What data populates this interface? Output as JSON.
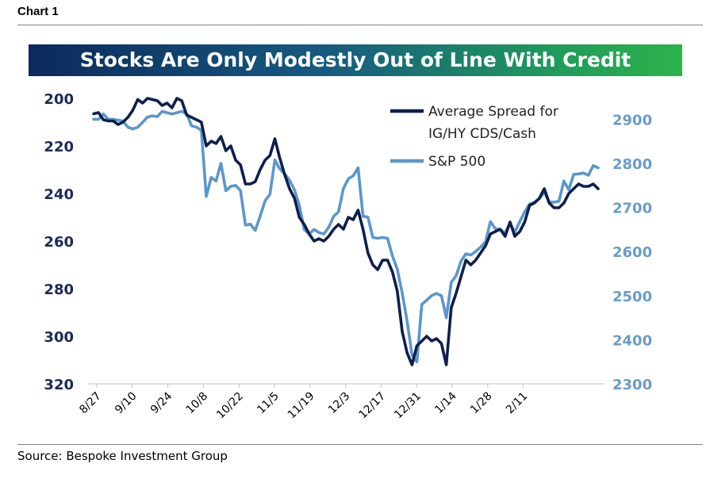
{
  "header": {
    "label": "Chart 1"
  },
  "footer": {
    "source": "Source: Bespoke Investment Group"
  },
  "chart_data": {
    "type": "line",
    "title": "Stocks Are Only Modestly Out of Line With Credit",
    "x_tick_labels": [
      "8/27",
      "9/10",
      "9/24",
      "10/8",
      "10/22",
      "11/5",
      "11/19",
      "12/3",
      "12/17",
      "12/31",
      "1/14",
      "1/28",
      "2/11"
    ],
    "y_left": {
      "ticks": [
        200,
        220,
        240,
        260,
        280,
        300,
        320
      ],
      "range": [
        200,
        320
      ],
      "inverted": true
    },
    "y_right": {
      "ticks": [
        2900,
        2800,
        2700,
        2600,
        2500,
        2400,
        2300
      ],
      "range": [
        2300,
        2970
      ]
    },
    "legend": {
      "placement": "top-right",
      "entries": [
        "Average Spread for IG/HY CDS/Cash",
        "S&P 500"
      ]
    },
    "grid": false,
    "series": [
      {
        "name": "Average Spread for IG/HY CDS/Cash",
        "axis": "left",
        "color": "#0e1f4d",
        "points": [
          [
            0,
            206.5
          ],
          [
            2,
            206
          ],
          [
            4,
            209
          ],
          [
            6,
            209.5
          ],
          [
            8,
            209.5
          ],
          [
            10,
            211
          ],
          [
            12,
            210
          ],
          [
            14,
            208
          ],
          [
            16,
            205
          ],
          [
            18,
            200.5
          ],
          [
            20,
            202
          ],
          [
            22,
            200
          ],
          [
            24,
            200.5
          ],
          [
            26,
            201
          ],
          [
            28,
            203
          ],
          [
            30,
            202
          ],
          [
            32,
            204
          ],
          [
            34,
            200
          ],
          [
            36,
            201
          ],
          [
            38,
            207
          ],
          [
            40,
            208
          ],
          [
            42,
            209
          ],
          [
            44,
            210
          ],
          [
            46,
            220
          ],
          [
            48,
            218
          ],
          [
            50,
            219
          ],
          [
            52,
            216
          ],
          [
            54,
            222
          ],
          [
            56,
            220
          ],
          [
            58,
            226
          ],
          [
            60,
            228
          ],
          [
            62,
            236
          ],
          [
            64,
            236
          ],
          [
            66,
            235
          ],
          [
            68,
            230
          ],
          [
            70,
            226
          ],
          [
            72,
            224
          ],
          [
            74,
            217
          ],
          [
            76,
            225
          ],
          [
            78,
            232
          ],
          [
            80,
            238
          ],
          [
            82,
            242
          ],
          [
            84,
            250
          ],
          [
            86,
            253
          ],
          [
            88,
            257
          ],
          [
            90,
            260
          ],
          [
            92,
            259
          ],
          [
            94,
            260
          ],
          [
            96,
            258
          ],
          [
            98,
            255
          ],
          [
            100,
            253
          ],
          [
            102,
            255
          ],
          [
            104,
            250
          ],
          [
            106,
            251
          ],
          [
            108,
            247
          ],
          [
            110,
            255
          ],
          [
            112,
            265
          ],
          [
            114,
            270
          ],
          [
            116,
            272
          ],
          [
            118,
            268
          ],
          [
            120,
            268
          ],
          [
            122,
            273
          ],
          [
            124,
            281
          ],
          [
            126,
            298
          ],
          [
            128,
            307
          ],
          [
            130,
            312
          ],
          [
            132,
            304
          ],
          [
            134,
            302
          ],
          [
            136,
            300
          ],
          [
            138,
            302
          ],
          [
            140,
            301
          ],
          [
            142,
            303
          ],
          [
            144,
            312
          ],
          [
            146,
            288
          ],
          [
            148,
            282
          ],
          [
            150,
            275
          ],
          [
            152,
            268
          ],
          [
            154,
            270
          ],
          [
            156,
            268
          ],
          [
            158,
            265
          ],
          [
            160,
            262
          ],
          [
            162,
            257
          ],
          [
            164,
            256
          ],
          [
            166,
            255
          ],
          [
            168,
            258
          ],
          [
            170,
            252
          ],
          [
            172,
            258
          ],
          [
            174,
            256
          ],
          [
            176,
            252
          ],
          [
            178,
            245
          ],
          [
            180,
            244
          ],
          [
            182,
            242
          ],
          [
            184,
            238
          ],
          [
            186,
            244
          ],
          [
            188,
            246
          ],
          [
            190,
            246
          ],
          [
            192,
            244
          ],
          [
            194,
            240
          ],
          [
            196,
            238
          ],
          [
            198,
            236
          ],
          [
            200,
            237
          ],
          [
            202,
            237
          ],
          [
            204,
            236
          ],
          [
            206,
            238
          ]
        ]
      },
      {
        "name": "S&P 500",
        "axis": "right",
        "color": "#5b97cc",
        "points": [
          [
            0,
            2900
          ],
          [
            2,
            2900
          ],
          [
            4,
            2912
          ],
          [
            6,
            2900
          ],
          [
            8,
            2900
          ],
          [
            10,
            2898
          ],
          [
            12,
            2896
          ],
          [
            14,
            2882
          ],
          [
            16,
            2878
          ],
          [
            18,
            2882
          ],
          [
            20,
            2893
          ],
          [
            22,
            2905
          ],
          [
            24,
            2908
          ],
          [
            26,
            2906
          ],
          [
            28,
            2918
          ],
          [
            30,
            2915
          ],
          [
            32,
            2912
          ],
          [
            34,
            2915
          ],
          [
            36,
            2918
          ],
          [
            38,
            2912
          ],
          [
            40,
            2885
          ],
          [
            42,
            2882
          ],
          [
            44,
            2875
          ],
          [
            46,
            2725
          ],
          [
            48,
            2768
          ],
          [
            50,
            2760
          ],
          [
            52,
            2800
          ],
          [
            54,
            2738
          ],
          [
            56,
            2748
          ],
          [
            58,
            2750
          ],
          [
            60,
            2738
          ],
          [
            62,
            2660
          ],
          [
            64,
            2662
          ],
          [
            66,
            2648
          ],
          [
            68,
            2680
          ],
          [
            70,
            2715
          ],
          [
            72,
            2730
          ],
          [
            74,
            2808
          ],
          [
            76,
            2788
          ],
          [
            78,
            2776
          ],
          [
            80,
            2762
          ],
          [
            82,
            2740
          ],
          [
            84,
            2705
          ],
          [
            86,
            2650
          ],
          [
            88,
            2640
          ],
          [
            90,
            2650
          ],
          [
            92,
            2643
          ],
          [
            94,
            2640
          ],
          [
            96,
            2655
          ],
          [
            98,
            2680
          ],
          [
            100,
            2690
          ],
          [
            102,
            2743
          ],
          [
            104,
            2765
          ],
          [
            106,
            2772
          ],
          [
            108,
            2790
          ],
          [
            110,
            2680
          ],
          [
            112,
            2678
          ],
          [
            114,
            2632
          ],
          [
            116,
            2630
          ],
          [
            118,
            2632
          ],
          [
            120,
            2630
          ],
          [
            122,
            2590
          ],
          [
            124,
            2560
          ],
          [
            126,
            2506
          ],
          [
            128,
            2442
          ],
          [
            130,
            2365
          ],
          [
            132,
            2350
          ],
          [
            134,
            2480
          ],
          [
            136,
            2490
          ],
          [
            138,
            2500
          ],
          [
            140,
            2505
          ],
          [
            142,
            2500
          ],
          [
            144,
            2450
          ],
          [
            146,
            2530
          ],
          [
            148,
            2545
          ],
          [
            150,
            2578
          ],
          [
            152,
            2595
          ],
          [
            154,
            2592
          ],
          [
            156,
            2600
          ],
          [
            158,
            2610
          ],
          [
            160,
            2622
          ],
          [
            162,
            2668
          ],
          [
            164,
            2652
          ],
          [
            166,
            2650
          ],
          [
            168,
            2642
          ],
          [
            170,
            2664
          ],
          [
            172,
            2644
          ],
          [
            174,
            2668
          ],
          [
            176,
            2690
          ],
          [
            178,
            2708
          ],
          [
            180,
            2712
          ],
          [
            182,
            2720
          ],
          [
            184,
            2735
          ],
          [
            186,
            2712
          ],
          [
            188,
            2712
          ],
          [
            190,
            2714
          ],
          [
            192,
            2760
          ],
          [
            194,
            2740
          ],
          [
            196,
            2775
          ],
          [
            198,
            2776
          ],
          [
            200,
            2778
          ],
          [
            202,
            2773
          ],
          [
            204,
            2795
          ],
          [
            206,
            2790
          ]
        ]
      }
    ]
  }
}
